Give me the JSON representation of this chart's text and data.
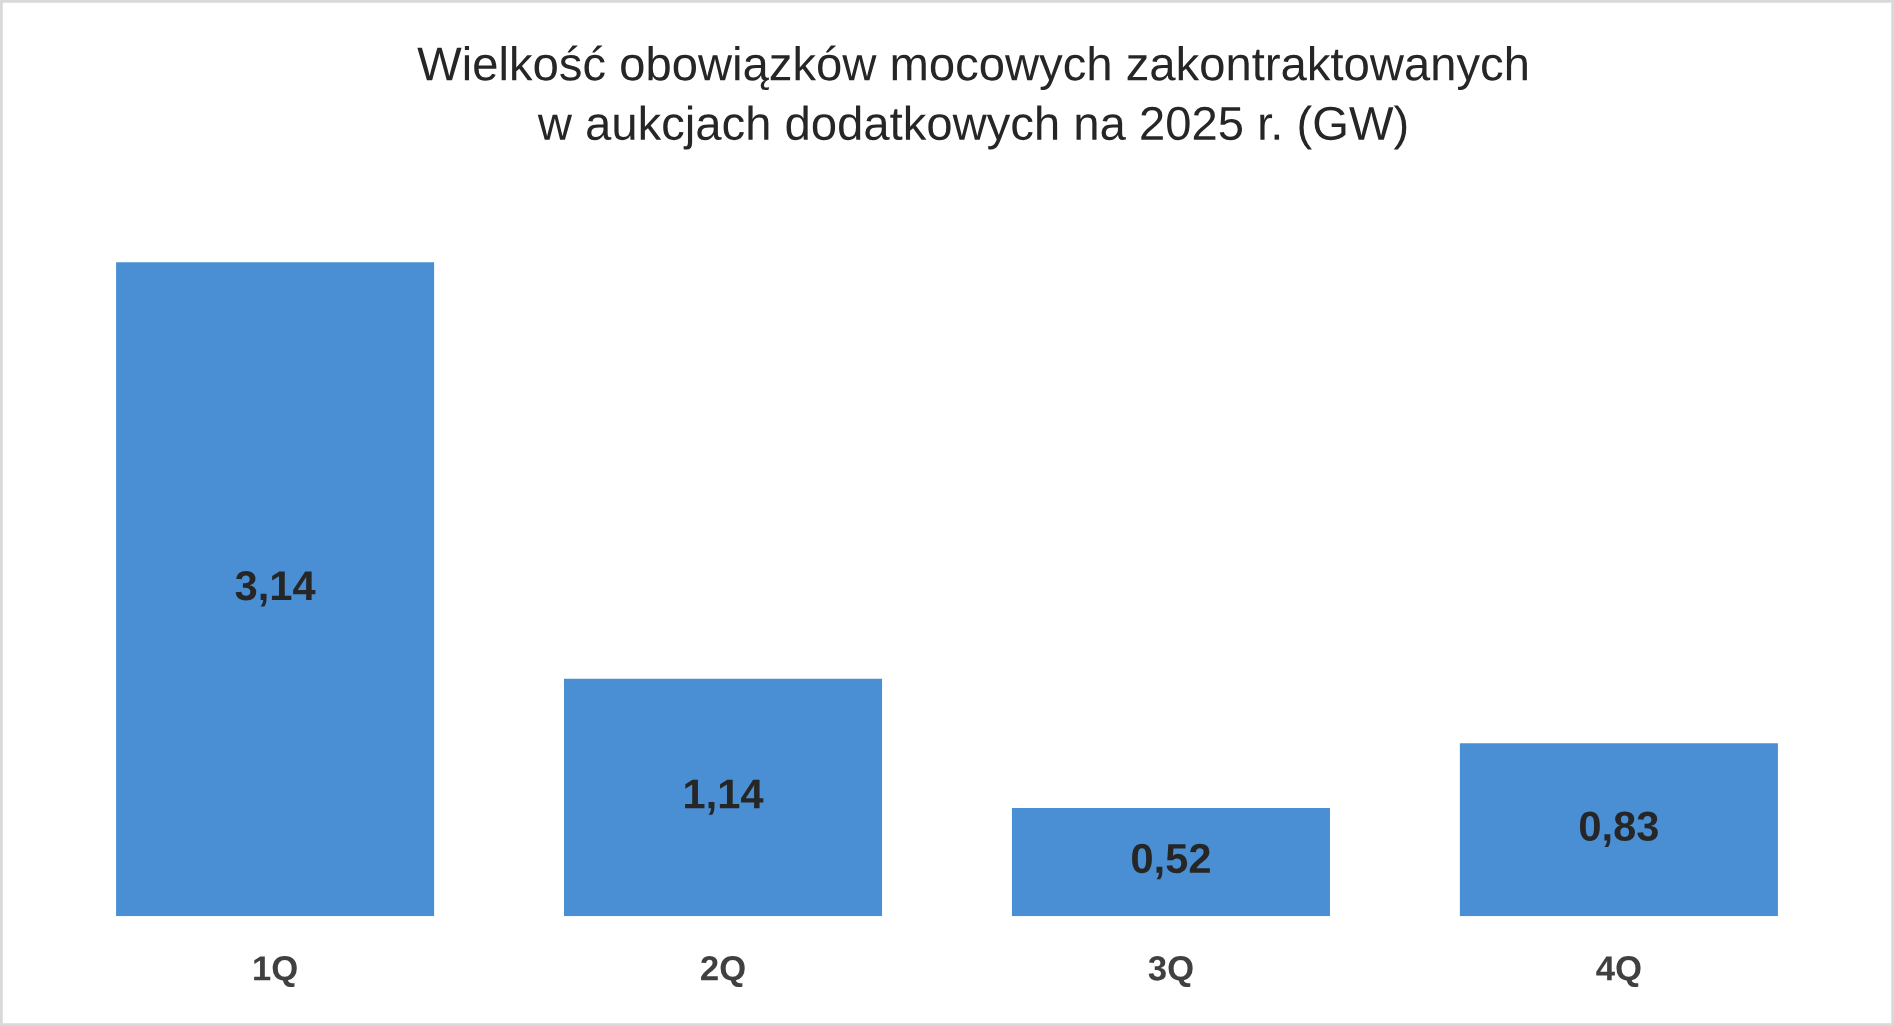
{
  "chart_data": {
    "type": "bar",
    "title": "Wielkość obowiązków mocowych zakontraktowanych\nw aukcjach dodatkowych na 2025 r. (GW)",
    "categories": [
      "1Q",
      "2Q",
      "3Q",
      "4Q"
    ],
    "values": [
      3.14,
      1.14,
      0.52,
      0.83
    ],
    "value_labels": [
      "3,14",
      "1,14",
      "0,52",
      "0,83"
    ],
    "color": "#4a8fd4",
    "grid": false,
    "legend": false
  }
}
